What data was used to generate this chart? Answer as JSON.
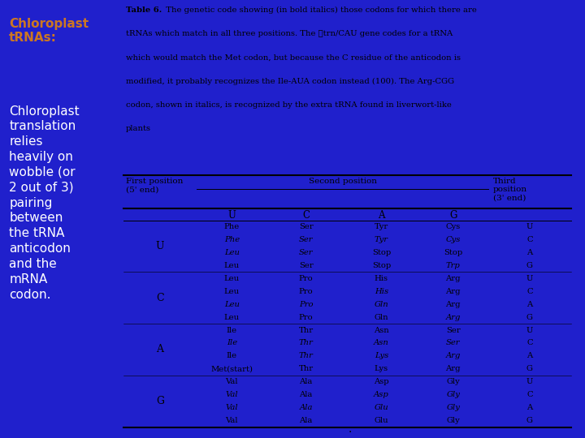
{
  "background_color": "#2020cc",
  "right_panel_bg": "#e8e8e8",
  "left_text_color": "#cc7722",
  "left_text_normal_color": "#ffffff",
  "table_title_bold": "Table 6.",
  "table_title_rest": "  The genetic code showing (in bold italics) those codons for which there are\ntRNAs which match in all three positions. The trnℓCAU gene codes for a tRNA\nwhich would match the Met codon, but because the C residue of the anticodon is\nmodified, it probably recognizes the Ile-AUA codon instead (100). The Arg-CGG\ncodon, shown in italics, is recognized by the extra tRNA found in liverwort-like\nplants",
  "second_pos": [
    "U",
    "C",
    "A",
    "G"
  ],
  "rows": [
    {
      "first": "U",
      "cells_U": [
        "Phe",
        "Phe*",
        "Leu*",
        "Leu"
      ],
      "cells_C": [
        "Ser",
        "Ser*",
        "Ser*",
        "Ser"
      ],
      "cells_A": [
        "Tyr",
        "Tyr*",
        "Stop",
        "Stop"
      ],
      "cells_G": [
        "Cys",
        "Cys*",
        "Stop",
        "Trp*"
      ],
      "third": [
        "U",
        "C",
        "A",
        "G"
      ]
    },
    {
      "first": "C",
      "cells_U": [
        "Leu",
        "Leu",
        "Leu*",
        "Leu"
      ],
      "cells_C": [
        "Pro",
        "Pro",
        "Pro*",
        "Pro"
      ],
      "cells_A": [
        "His",
        "His*",
        "Gln*",
        "Gln"
      ],
      "cells_G": [
        "Arg",
        "Arg",
        "Arg",
        "Arg*"
      ],
      "third": [
        "U",
        "C",
        "A",
        "G"
      ]
    },
    {
      "first": "A",
      "cells_U": [
        "Ile",
        "Ile*",
        "Ile",
        "Met(start)"
      ],
      "cells_C": [
        "Thr",
        "Thr*",
        "Thr*",
        "Thr"
      ],
      "cells_A": [
        "Asn",
        "Asn*",
        "Lys*",
        "Lys"
      ],
      "cells_G": [
        "Ser",
        "Ser*",
        "Arg*",
        "Arg"
      ],
      "third": [
        "U",
        "C",
        "A",
        "G"
      ]
    },
    {
      "first": "G",
      "cells_U": [
        "Val",
        "Val*",
        "Val*",
        "Val"
      ],
      "cells_C": [
        "Ala",
        "Ala",
        "Ala*",
        "Ala"
      ],
      "cells_A": [
        "Asp",
        "Asp*",
        "Glu*",
        "Glu"
      ],
      "cells_G": [
        "Gly",
        "Gly*",
        "Gly*",
        "Gly"
      ],
      "third": [
        "U",
        "C",
        "A",
        "G"
      ]
    }
  ]
}
